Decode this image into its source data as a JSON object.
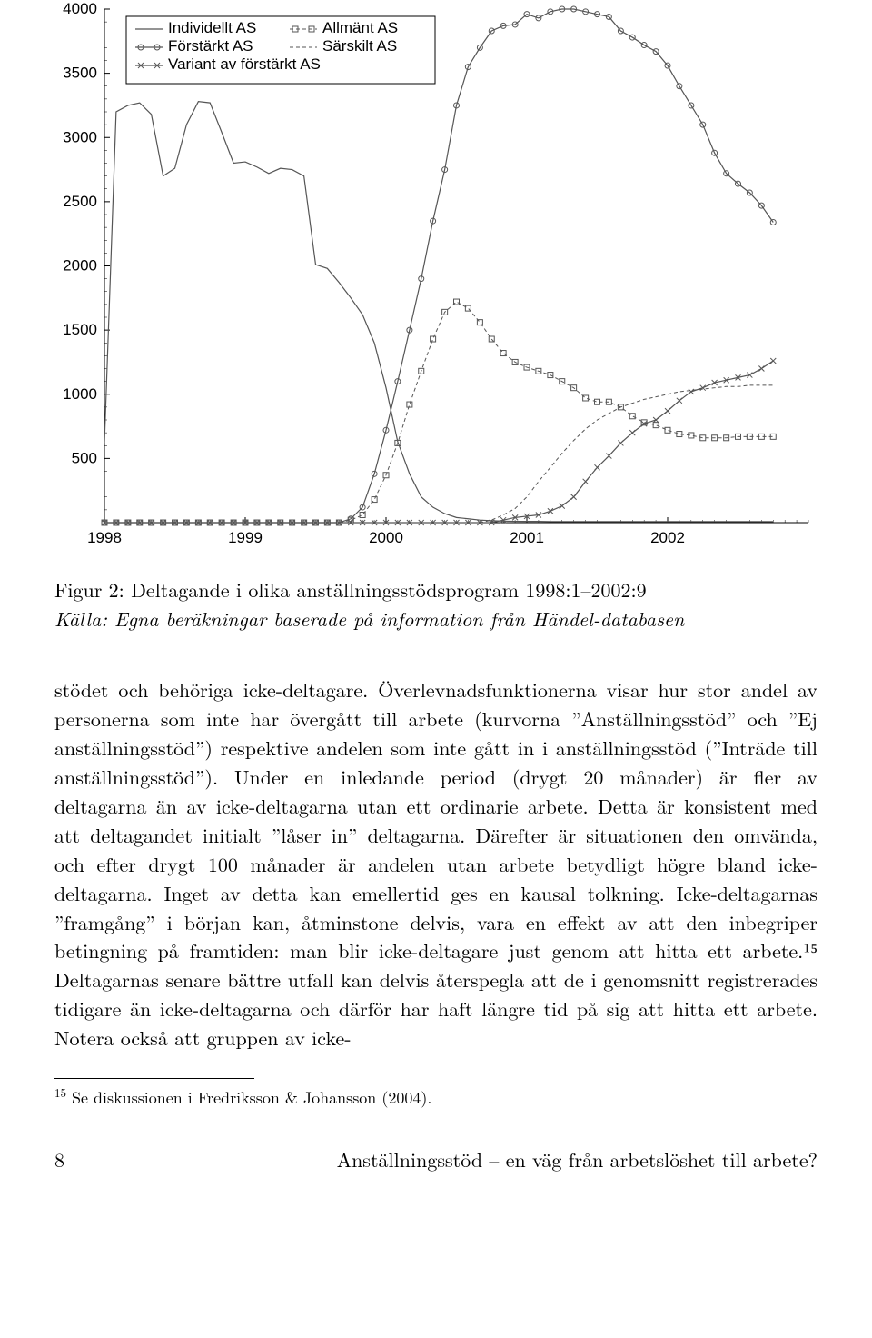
{
  "chart": {
    "type": "line",
    "background_color": "#ffffff",
    "axis_color": "#000000",
    "series_color": "#555555",
    "ylim": [
      0,
      4000
    ],
    "ytick_step": 500,
    "xlim": [
      1998,
      2003
    ],
    "yticks": [
      500,
      1000,
      1500,
      2000,
      2500,
      3000,
      3500,
      4000
    ],
    "xticks": [
      1998,
      1999,
      2000,
      2001,
      2002
    ],
    "legend": [
      {
        "label": "Individellt AS",
        "style": "solid",
        "marker": "none"
      },
      {
        "label": "Förstärkt AS",
        "style": "solid",
        "marker": "circle"
      },
      {
        "label": "Variant av förstärkt AS",
        "style": "solid",
        "marker": "x"
      },
      {
        "label": "Allmänt AS",
        "style": "dash",
        "marker": "square"
      },
      {
        "label": "Särskilt AS",
        "style": "dash",
        "marker": "none"
      }
    ],
    "x_values": [
      1998.0,
      1998.083,
      1998.167,
      1998.25,
      1998.333,
      1998.417,
      1998.5,
      1998.583,
      1998.667,
      1998.75,
      1998.833,
      1998.917,
      1999.0,
      1999.083,
      1999.167,
      1999.25,
      1999.333,
      1999.417,
      1999.5,
      1999.583,
      1999.667,
      1999.75,
      1999.833,
      1999.917,
      2000.0,
      2000.083,
      2000.167,
      2000.25,
      2000.333,
      2000.417,
      2000.5,
      2000.583,
      2000.667,
      2000.75,
      2000.833,
      2000.917,
      2001.0,
      2001.083,
      2001.167,
      2001.25,
      2001.333,
      2001.417,
      2001.5,
      2001.583,
      2001.667,
      2001.75,
      2001.833,
      2001.917,
      2002.0,
      2002.083,
      2002.167,
      2002.25,
      2002.333,
      2002.417,
      2002.5,
      2002.583,
      2002.667,
      2002.75
    ],
    "series": {
      "individellt": [
        620,
        3200,
        3250,
        3270,
        3180,
        2700,
        2760,
        3100,
        3280,
        3270,
        3040,
        2800,
        2810,
        2770,
        2720,
        2760,
        2750,
        2700,
        2010,
        1980,
        1870,
        1750,
        1620,
        1400,
        1050,
        630,
        380,
        200,
        120,
        70,
        40,
        30,
        20,
        15,
        12,
        10,
        10,
        10,
        8,
        8,
        8,
        8,
        8,
        8,
        8,
        8,
        8,
        8,
        8,
        8,
        8,
        8,
        8,
        8,
        8,
        8,
        8,
        8
      ],
      "forstarkt": [
        0,
        0,
        0,
        0,
        0,
        0,
        0,
        0,
        0,
        0,
        0,
        0,
        0,
        0,
        0,
        0,
        0,
        0,
        0,
        0,
        0,
        30,
        120,
        380,
        720,
        1100,
        1500,
        1900,
        2350,
        2750,
        3250,
        3550,
        3700,
        3830,
        3870,
        3880,
        3960,
        3930,
        3980,
        4000,
        4000,
        3980,
        3960,
        3940,
        3830,
        3780,
        3720,
        3670,
        3560,
        3400,
        3250,
        3100,
        2880,
        2720,
        2640,
        2570,
        2470,
        2340
      ],
      "variant": [
        0,
        0,
        0,
        0,
        0,
        0,
        0,
        0,
        0,
        0,
        0,
        0,
        0,
        0,
        0,
        0,
        0,
        0,
        0,
        0,
        0,
        0,
        0,
        0,
        0,
        0,
        0,
        0,
        0,
        0,
        0,
        0,
        0,
        0,
        20,
        40,
        50,
        60,
        90,
        130,
        200,
        320,
        430,
        520,
        620,
        700,
        770,
        800,
        870,
        950,
        1020,
        1050,
        1090,
        1110,
        1130,
        1150,
        1200,
        1260
      ],
      "allmant": [
        0,
        0,
        0,
        0,
        0,
        0,
        0,
        0,
        0,
        0,
        0,
        0,
        0,
        0,
        0,
        0,
        0,
        0,
        0,
        0,
        0,
        20,
        60,
        180,
        370,
        620,
        920,
        1180,
        1430,
        1640,
        1720,
        1670,
        1560,
        1430,
        1320,
        1250,
        1210,
        1180,
        1150,
        1100,
        1050,
        970,
        940,
        940,
        900,
        830,
        780,
        760,
        720,
        690,
        680,
        660,
        660,
        660,
        670,
        670,
        670,
        670
      ],
      "sarskilt": [
        0,
        0,
        0,
        0,
        0,
        0,
        0,
        0,
        0,
        0,
        0,
        0,
        0,
        0,
        0,
        0,
        0,
        0,
        0,
        0,
        0,
        0,
        0,
        0,
        0,
        0,
        0,
        0,
        0,
        0,
        0,
        0,
        0,
        20,
        60,
        110,
        200,
        320,
        430,
        540,
        640,
        730,
        800,
        850,
        900,
        930,
        960,
        980,
        1000,
        1020,
        1030,
        1040,
        1050,
        1060,
        1060,
        1070,
        1070,
        1070
      ]
    }
  },
  "caption": {
    "fig_label": "Figur 2: Deltagande i olika anställningsstödsprogram 1998:1–2002:9",
    "source": "Källa: Egna beräkningar baserade på information från Händel-databasen"
  },
  "body": "stödet och behöriga icke-deltagare. Överlevnadsfunktionerna visar hur stor andel av personerna som inte har övergått till arbete (kurvorna ”Anställningsstöd” och ”Ej anställningsstöd”) respektive andelen som inte gått in i anställningsstöd (”Inträde till anställningsstöd”). Under en inledande period (drygt 20 månader) är fler av deltagarna än av icke-deltagarna utan ett ordinarie arbete. Detta är konsistent med att deltagandet initialt ”låser in” deltagarna. Därefter är situationen den omvända, och efter drygt 100 månader är andelen utan arbete betydligt högre bland icke-deltagarna. Inget av detta kan emellertid ges en kausal tolkning. Icke-deltagarnas ”framgång” i början kan, åtminstone delvis, vara en effekt av att den inbegriper betingning på framtiden: man blir icke-deltagare just genom att hitta ett arbete.¹⁵ Deltagarnas senare bättre utfall kan delvis återspegla att de i genomsnitt registrerades tidigare än icke-deltagarna och därför har haft längre tid på sig att hitta ett arbete. Notera också att gruppen av icke-",
  "footnote_marker": "15",
  "footnote_text": "Se diskussionen i Fredriksson & Johansson (2004).",
  "page_number": "8",
  "running_title": "Anställningsstöd – en väg från arbetslöshet till arbete?"
}
